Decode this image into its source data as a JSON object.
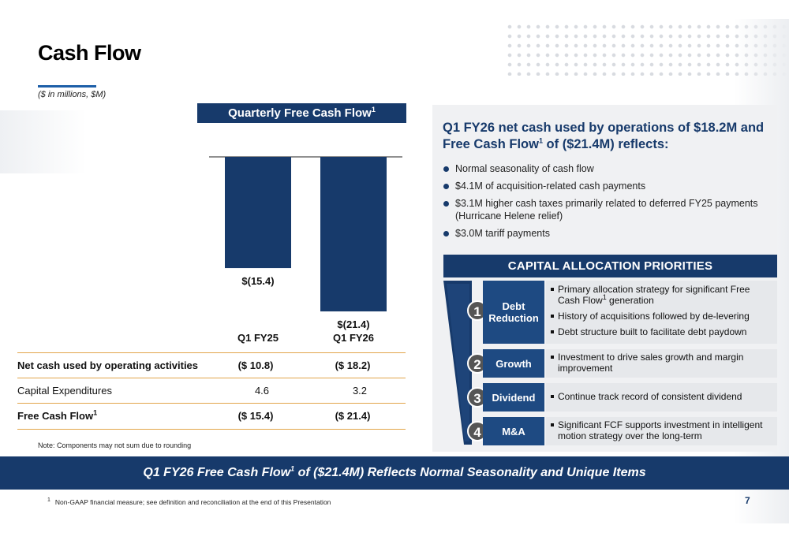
{
  "page": {
    "title": "Cash Flow",
    "units": "($ in millions, $M)",
    "page_number": "7",
    "banner_pre": "Q1 FY26 Free Cash Flow",
    "banner_sup": "1",
    "banner_post": " of ($21.4M) Reflects Normal Seasonality and Unique Items",
    "footnote_num": "1",
    "footnote": "Non-GAAP financial measure; see definition and reconciliation at the end of this Presentation",
    "note": "Note: Components may not sum due to rounding"
  },
  "chart_data": {
    "type": "bar",
    "title": "Quarterly Free Cash Flow",
    "title_sup": "1",
    "categories": [
      "Q1 FY25",
      "Q1 FY26"
    ],
    "values": [
      -15.4,
      -21.4
    ],
    "data_labels": [
      "$(15.4)",
      "$(21.4)"
    ],
    "ylim": [
      -25,
      0
    ],
    "bar_color": "#173a6b"
  },
  "table": {
    "rows": [
      {
        "label": "Net cash used by operating activities",
        "label_sup": "",
        "q1fy25": "($ 10.8)",
        "q1fy26": "($ 18.2)",
        "bold": true
      },
      {
        "label": "Capital Expenditures",
        "label_sup": "",
        "q1fy25": "4.6",
        "q1fy26": "3.2",
        "bold": false
      },
      {
        "label": "Free Cash Flow",
        "label_sup": "1",
        "q1fy25": "($ 15.4)",
        "q1fy26": "($ 21.4)",
        "bold": true
      }
    ]
  },
  "summary": {
    "heading_pre": "Q1 FY26 net cash used by operations of $18.2M and Free Cash Flow",
    "heading_sup": "1",
    "heading_post": " of ($21.4M) reflects:",
    "bullets": [
      "Normal seasonality of cash flow",
      "$4.1M of acquisition-related cash payments",
      "$3.1M higher cash taxes primarily related to deferred FY25 payments (Hurricane Helene relief)",
      "$3.0M tariff payments"
    ]
  },
  "capital_allocation": {
    "title": "CAPITAL ALLOCATION PRIORITIES",
    "priorities": [
      {
        "number": "1",
        "name": "Debt Reduction",
        "items": [
          {
            "pre": "Primary allocation strategy for significant Free Cash Flow",
            "sup": "1",
            "post": " generation"
          },
          {
            "pre": "History of acquisitions followed by de-levering",
            "sup": "",
            "post": ""
          },
          {
            "pre": "Debt structure built to facilitate debt paydown",
            "sup": "",
            "post": ""
          }
        ]
      },
      {
        "number": "2",
        "name": "Growth",
        "items": [
          {
            "pre": "Investment to drive sales growth and margin improvement",
            "sup": "",
            "post": ""
          }
        ]
      },
      {
        "number": "3",
        "name": "Dividend",
        "items": [
          {
            "pre": "Continue track record of consistent dividend",
            "sup": "",
            "post": ""
          }
        ]
      },
      {
        "number": "4",
        "name": "M&A",
        "items": [
          {
            "pre": "Significant FCF supports investment in intelligent motion strategy over the long-term",
            "sup": "",
            "post": ""
          }
        ]
      }
    ]
  }
}
